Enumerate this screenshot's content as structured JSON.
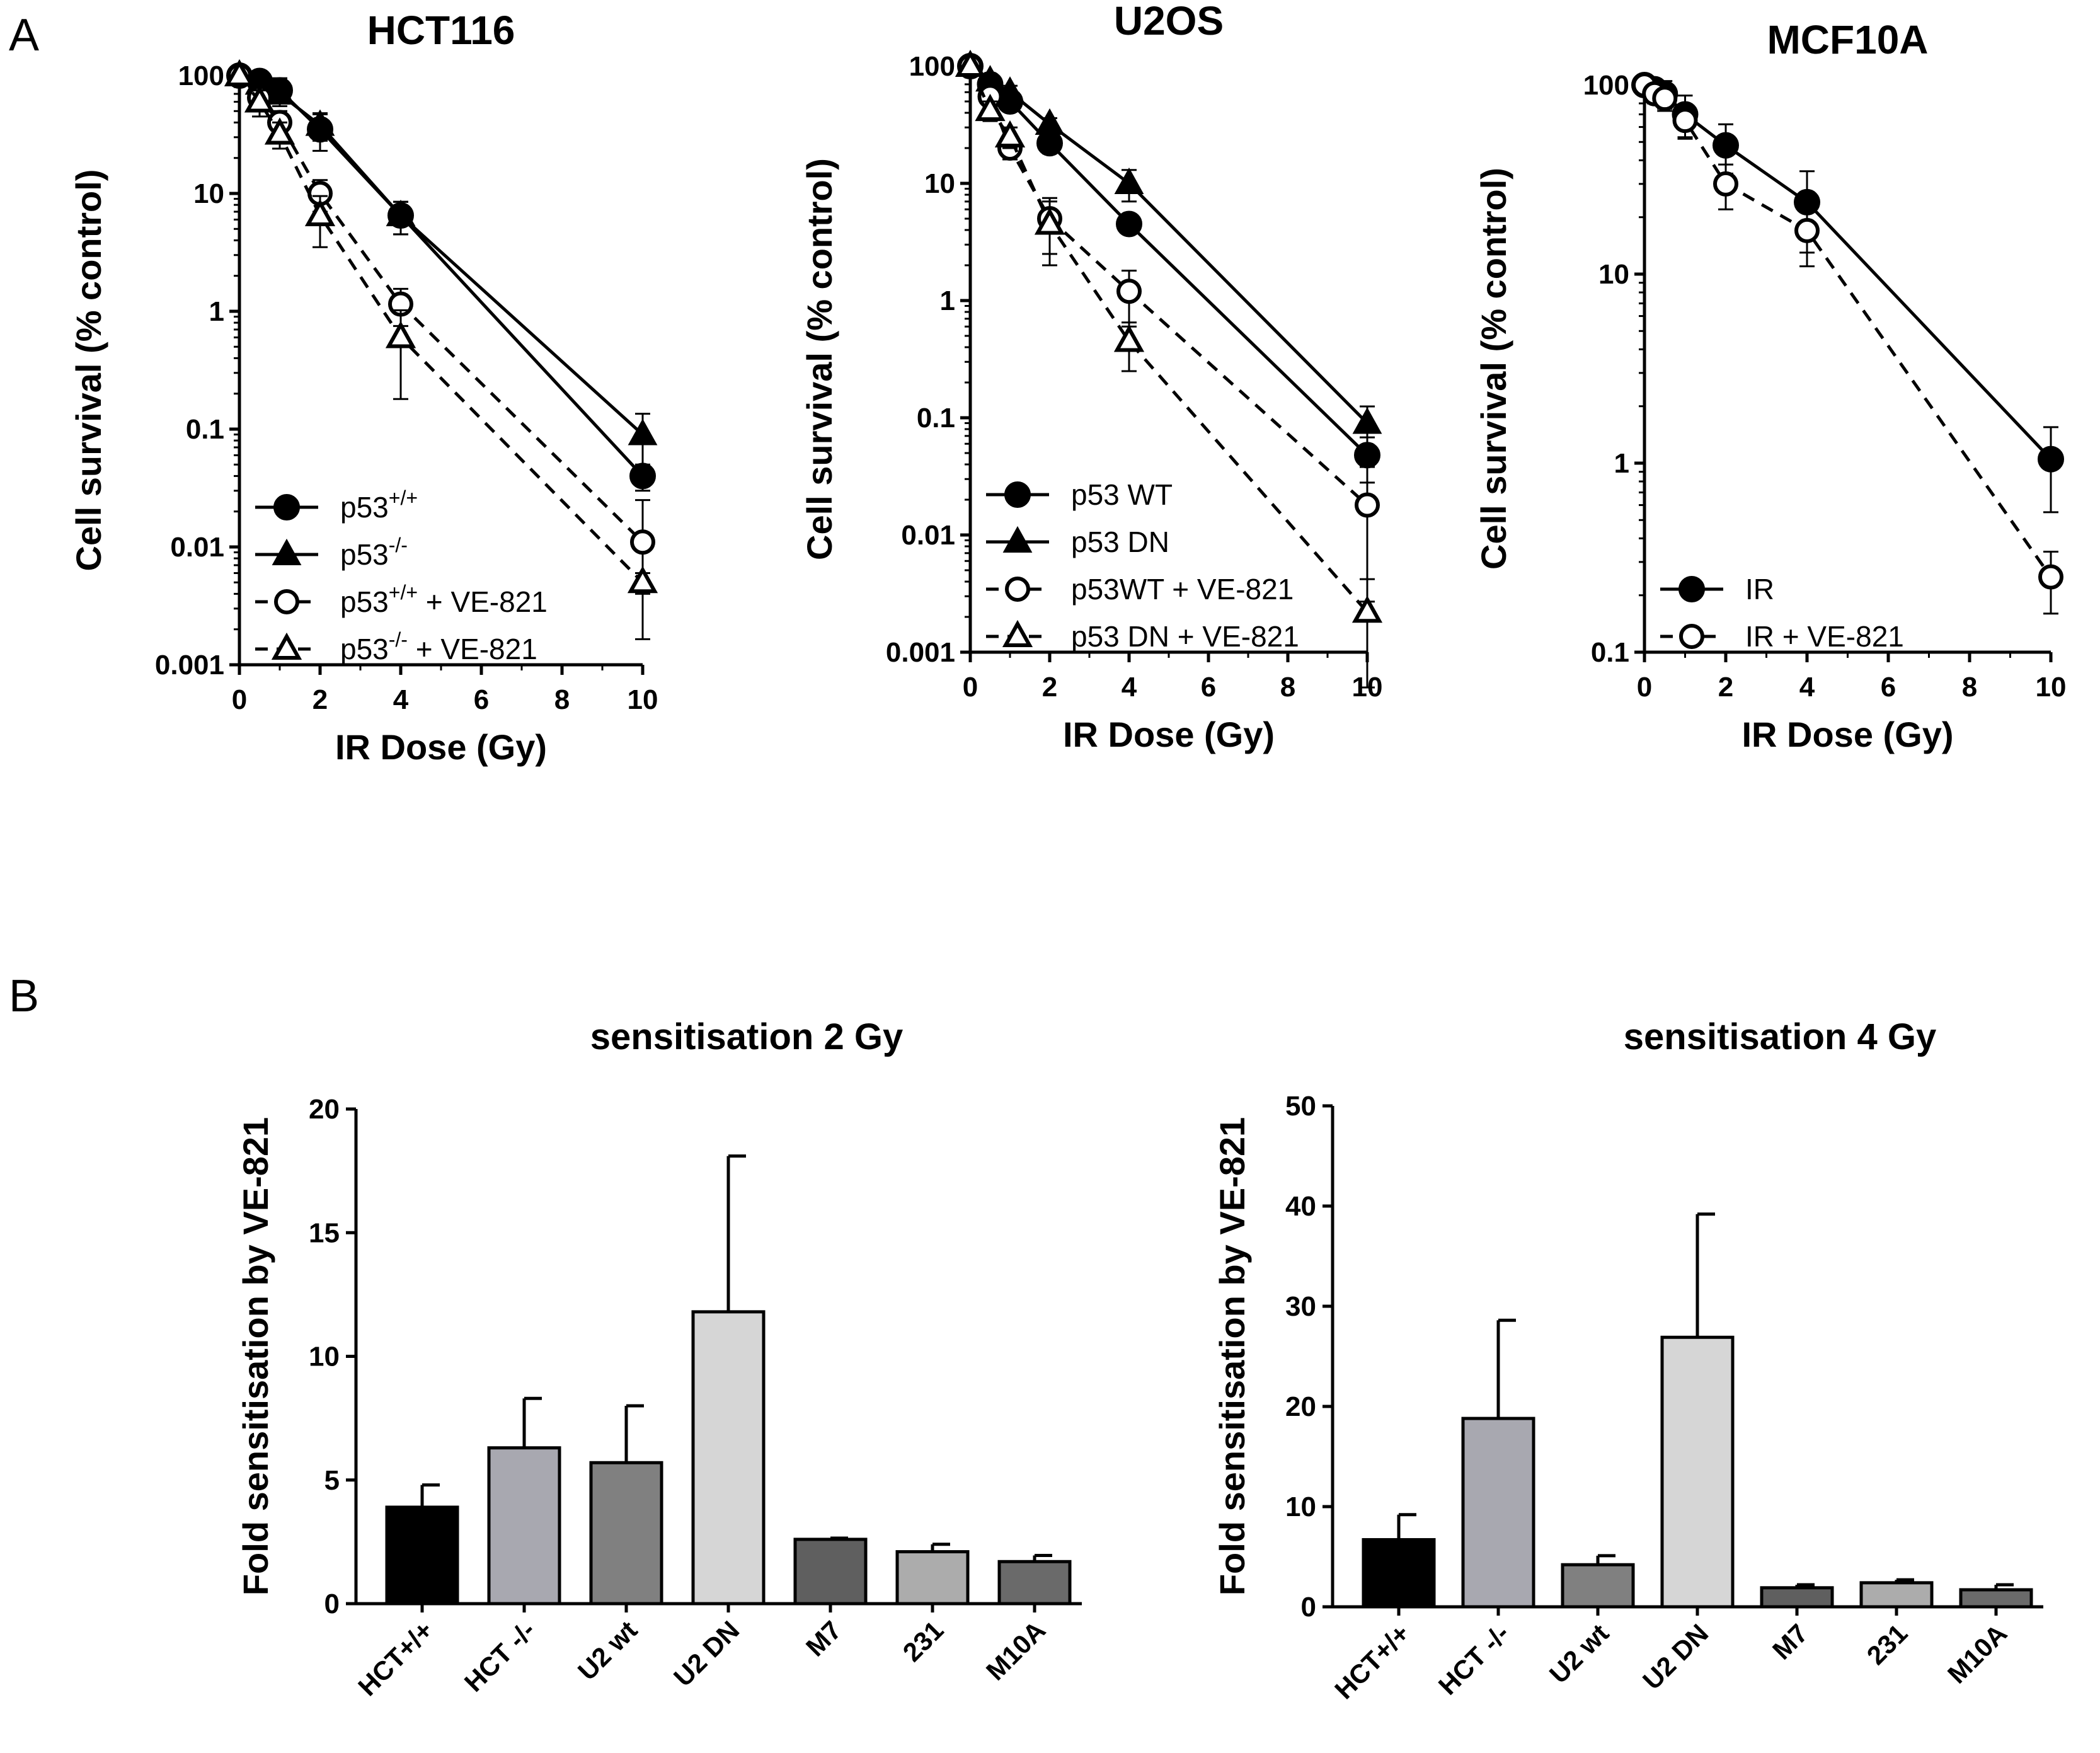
{
  "panel_labels": [
    "A",
    "B"
  ],
  "chart_data": [
    {
      "type": "line",
      "title": "HCT116",
      "xlabel": "IR Dose (Gy)",
      "ylabel": "Cell survival (% control)",
      "yscale": "log",
      "xlim": [
        0,
        10
      ],
      "ylim": [
        0.001,
        100
      ],
      "xticks": [
        "0",
        "2",
        "4",
        "6",
        "8",
        "10"
      ],
      "yticks": [
        "0.001",
        "0.01",
        "0.1",
        "1",
        "10",
        "100"
      ],
      "legend_position": "bottom-left",
      "series": [
        {
          "name": "p53+/+",
          "label_base": "p53",
          "label_sup": "+/+",
          "label_suffix": "",
          "marker": "circle-filled",
          "dashed": false,
          "x": [
            0,
            0.5,
            1,
            2,
            4,
            10
          ],
          "y": [
            100,
            90,
            75,
            35,
            6.5,
            0.04
          ],
          "err": [
            5,
            15,
            20,
            12,
            2,
            0.01
          ]
        },
        {
          "name": "p53-/-",
          "label_base": "p53",
          "label_sup": "-/-",
          "label_suffix": "",
          "marker": "triangle-filled",
          "dashed": false,
          "x": [
            0,
            0.5,
            1,
            2,
            4,
            10
          ],
          "y": [
            100,
            85,
            70,
            38,
            6.5,
            0.09
          ],
          "err": [
            5,
            15,
            15,
            10,
            2,
            0.045
          ]
        },
        {
          "name": "p53+/+ + VE-821",
          "label_base": "p53",
          "label_sup": "+/+",
          "label_suffix": " + VE-821",
          "marker": "circle-open",
          "dashed": true,
          "x": [
            0,
            0.5,
            1,
            2,
            4,
            10
          ],
          "y": [
            100,
            65,
            40,
            10,
            1.15,
            0.011
          ],
          "err": [
            5,
            12,
            10,
            3,
            0.4,
            0.014
          ]
        },
        {
          "name": "p53-/- + VE-821",
          "label_base": "p53",
          "label_sup": "-/-",
          "label_suffix": " + VE-821",
          "marker": "triangle-open",
          "dashed": true,
          "x": [
            0,
            0.5,
            1,
            2,
            4,
            10
          ],
          "y": [
            100,
            60,
            32,
            6.5,
            0.6,
            0.005
          ],
          "err": [
            5,
            15,
            8,
            3,
            0.42,
            0.001
          ]
        }
      ]
    },
    {
      "type": "line",
      "title": "U2OS",
      "xlabel": "IR Dose (Gy)",
      "ylabel": "Cell survival (% control)",
      "yscale": "log",
      "xlim": [
        0,
        10
      ],
      "ylim": [
        0.001,
        100
      ],
      "xticks": [
        "0",
        "2",
        "4",
        "6",
        "8",
        "10"
      ],
      "yticks": [
        "0.001",
        "0.01",
        "0.1",
        "1",
        "10",
        "100"
      ],
      "legend_position": "bottom-left",
      "series": [
        {
          "name": "p53 WT",
          "label_base": "p53 WT",
          "label_sup": "",
          "label_suffix": "",
          "marker": "circle-filled",
          "dashed": false,
          "x": [
            0,
            0.5,
            1,
            2,
            4,
            10
          ],
          "y": [
            100,
            70,
            50,
            22,
            4.5,
            0.048
          ],
          "err": [
            5,
            10,
            8,
            4,
            0.8,
            0.02
          ]
        },
        {
          "name": "p53 DN",
          "label_base": "p53 DN",
          "label_sup": "",
          "label_suffix": "",
          "marker": "triangle-filled",
          "dashed": false,
          "x": [
            0,
            0.5,
            1,
            2,
            4,
            10
          ],
          "y": [
            100,
            75,
            60,
            32,
            10,
            0.09
          ],
          "err": [
            5,
            10,
            8,
            4,
            3,
            0.035
          ]
        },
        {
          "name": "p53WT + VE-821",
          "label_base": "p53WT + VE-821",
          "label_sup": "",
          "label_suffix": "",
          "marker": "circle-open",
          "dashed": true,
          "x": [
            0,
            0.5,
            1,
            2,
            4,
            10
          ],
          "y": [
            100,
            55,
            20,
            5,
            1.2,
            0.018
          ],
          "err": [
            5,
            10,
            4,
            2.5,
            0.6,
            0.02
          ]
        },
        {
          "name": "p53 DN + VE-821",
          "label_base": "p53 DN + VE-821",
          "label_sup": "",
          "label_suffix": "",
          "marker": "triangle-open",
          "dashed": true,
          "x": [
            0,
            0.5,
            1,
            2,
            4,
            10
          ],
          "y": [
            100,
            42,
            25,
            4.5,
            0.45,
            0.0022
          ],
          "err": [
            5,
            8,
            5,
            2.5,
            0.2,
            0.002
          ]
        }
      ]
    },
    {
      "type": "line",
      "title": "MCF10A",
      "xlabel": "IR Dose (Gy)",
      "ylabel": "Cell survival (% control)",
      "yscale": "log",
      "xlim": [
        0,
        10
      ],
      "ylim": [
        0.1,
        100
      ],
      "xticks": [
        "0",
        "2",
        "4",
        "6",
        "8",
        "10"
      ],
      "yticks": [
        "0.1",
        "1",
        "10",
        "100"
      ],
      "legend_position": "bottom-left",
      "series": [
        {
          "name": "IR",
          "label_base": "IR",
          "label_sup": "",
          "label_suffix": "",
          "marker": "circle-filled",
          "dashed": false,
          "x": [
            0,
            0.25,
            0.5,
            1,
            2,
            4,
            10
          ],
          "y": [
            100,
            95,
            90,
            70,
            48,
            24,
            1.05
          ],
          "err": [
            5,
            10,
            15,
            18,
            14,
            11,
            0.5
          ]
        },
        {
          "name": "IR + VE-821",
          "label_base": "IR + VE-821",
          "label_sup": "",
          "label_suffix": "",
          "marker": "circle-open",
          "dashed": true,
          "x": [
            0,
            0.25,
            0.5,
            1,
            2,
            4,
            10
          ],
          "y": [
            100,
            90,
            85,
            65,
            30,
            17,
            0.25
          ],
          "err": [
            5,
            10,
            12,
            12,
            8,
            6,
            0.09
          ]
        }
      ]
    },
    {
      "type": "bar",
      "title": "sensitisation 2 Gy",
      "ylabel": "Fold sensitisation by VE-821",
      "xlabel": "",
      "ylim": [
        0,
        20
      ],
      "yticks": [
        "0",
        "5",
        "10",
        "15",
        "20"
      ],
      "categories": [
        "HCT+/+",
        "HCT -/-",
        "U2 wt",
        "U2 DN",
        "M7",
        "231",
        "M10A"
      ],
      "values": [
        3.9,
        6.3,
        5.7,
        11.8,
        2.6,
        2.1,
        1.7
      ],
      "errors": [
        0.9,
        2.0,
        2.3,
        6.3,
        0.05,
        0.3,
        0.25
      ],
      "colors": [
        "#000000",
        "#a8a8b0",
        "#808080",
        "#d6d6d6",
        "#5f5f5f",
        "#acacac",
        "#6a6a6a"
      ]
    },
    {
      "type": "bar",
      "title": "sensitisation 4 Gy",
      "ylabel": "Fold sensitisation by VE-821",
      "xlabel": "",
      "ylim": [
        0,
        50
      ],
      "yticks": [
        "0",
        "10",
        "20",
        "30",
        "40",
        "50"
      ],
      "categories": [
        "HCT+/+",
        "HCT -/-",
        "U2 wt",
        "U2 DN",
        "M7",
        "231",
        "M10A"
      ],
      "values": [
        6.7,
        18.8,
        4.2,
        26.9,
        1.9,
        2.4,
        1.7
      ],
      "errors": [
        2.5,
        9.8,
        0.9,
        12.3,
        0.3,
        0.3,
        0.5
      ],
      "colors": [
        "#000000",
        "#a8a8b0",
        "#808080",
        "#d6d6d6",
        "#5f5f5f",
        "#acacac",
        "#6a6a6a"
      ]
    }
  ]
}
